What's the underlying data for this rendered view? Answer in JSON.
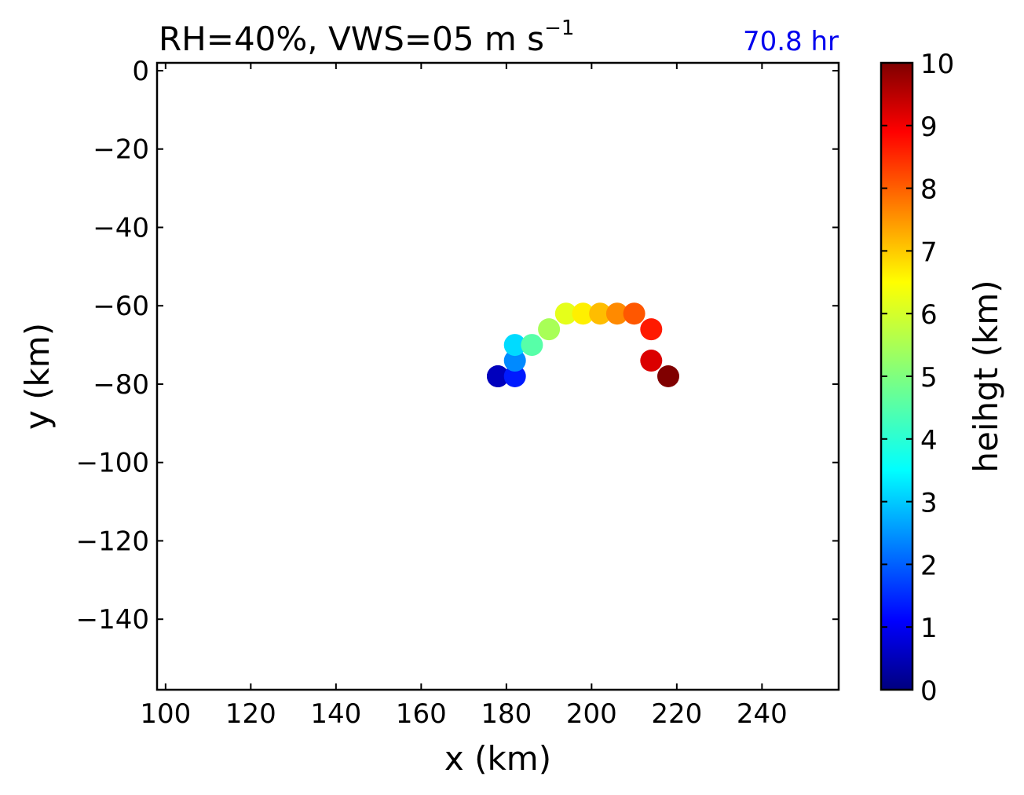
{
  "chart_data": {
    "type": "scatter",
    "title": "RH=40%, VWS=05 m s",
    "title_superscript": "−1",
    "annotation": "70.8 hr",
    "annotation_color": "#0000ee",
    "xlabel": "x (km)",
    "ylabel": "y (km)",
    "xlim": [
      98,
      258
    ],
    "ylim": [
      -158,
      2
    ],
    "xticks": [
      100,
      120,
      140,
      160,
      180,
      200,
      220,
      240
    ],
    "xtick_labels": [
      "100",
      "120",
      "140",
      "160",
      "180",
      "200",
      "220",
      "240"
    ],
    "yticks": [
      0,
      -20,
      -40,
      -60,
      -80,
      -100,
      -120,
      -140
    ],
    "ytick_labels": [
      "0",
      "−20",
      "−40",
      "−60",
      "−80",
      "−100",
      "−120",
      "−140"
    ],
    "grid": false,
    "colormap": "jet",
    "colorbar": {
      "label": "heihgt (km)",
      "range": [
        0,
        10
      ],
      "ticks": [
        0,
        1,
        2,
        3,
        4,
        5,
        6,
        7,
        8,
        9,
        10
      ],
      "tick_labels": [
        "0",
        "1",
        "2",
        "3",
        "4",
        "5",
        "6",
        "7",
        "8",
        "9",
        "10"
      ]
    },
    "points": [
      {
        "x": 178,
        "y": -78,
        "height": 0.2
      },
      {
        "x": 178,
        "y": -78,
        "height": 0.6
      },
      {
        "x": 182,
        "y": -78,
        "height": 1.5
      },
      {
        "x": 182,
        "y": -74,
        "height": 2.6
      },
      {
        "x": 182,
        "y": -70,
        "height": 3.4
      },
      {
        "x": 186,
        "y": -70,
        "height": 4.6
      },
      {
        "x": 190,
        "y": -66,
        "height": 5.4
      },
      {
        "x": 194,
        "y": -62,
        "height": 6.0
      },
      {
        "x": 198,
        "y": -62,
        "height": 6.4
      },
      {
        "x": 202,
        "y": -62,
        "height": 6.9
      },
      {
        "x": 206,
        "y": -62,
        "height": 7.4
      },
      {
        "x": 210,
        "y": -62,
        "height": 7.9
      },
      {
        "x": 214,
        "y": -66,
        "height": 8.5
      },
      {
        "x": 214,
        "y": -74,
        "height": 9.1
      },
      {
        "x": 218,
        "y": -78,
        "height": 10.0
      }
    ]
  }
}
